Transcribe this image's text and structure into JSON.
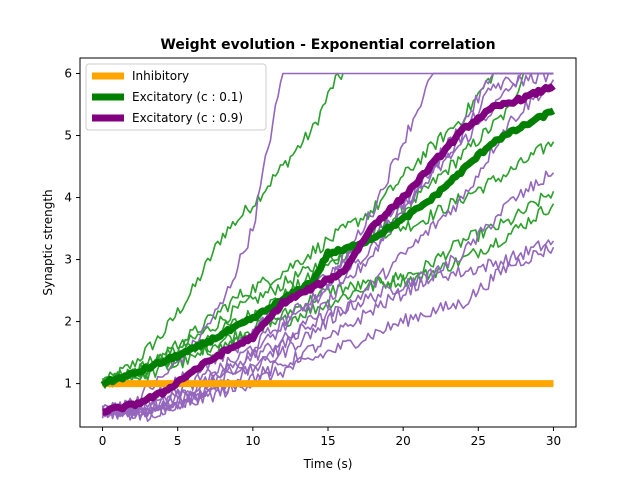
{
  "chart_data": {
    "type": "line",
    "title": "Weight evolution - Exponential correlation",
    "xlabel": "Time (s)",
    "ylabel": "Synaptic strength",
    "xlim": [
      -1.5,
      31.5
    ],
    "ylim": [
      0.3,
      6.25
    ],
    "xticks": [
      0,
      5,
      10,
      15,
      20,
      25,
      30
    ],
    "yticks": [
      1,
      2,
      3,
      4,
      5,
      6
    ],
    "grid": false,
    "legend_position": "top-left",
    "legend": [
      {
        "label": "Inhibitory",
        "color": "#ffa500"
      },
      {
        "label": "Excitatory (c : 0.1)",
        "color": "#008000"
      },
      {
        "label": "Excitatory (c : 0.9)",
        "color": "#800080"
      }
    ],
    "series": [
      {
        "name": "Inhibitory",
        "role": "mean",
        "color": "#ffa500",
        "x": [
          0,
          30
        ],
        "y": [
          1.0,
          1.0
        ]
      },
      {
        "name": "Excitatory (c : 0.1)",
        "role": "mean",
        "color": "#008000",
        "x": [
          0,
          2,
          4,
          6,
          8,
          10,
          12,
          14,
          15,
          16,
          18,
          20,
          22,
          24,
          26,
          28,
          30
        ],
        "y": [
          1.0,
          1.15,
          1.35,
          1.55,
          1.8,
          2.05,
          2.35,
          2.65,
          3.1,
          3.15,
          3.35,
          3.65,
          4.0,
          4.45,
          4.9,
          5.15,
          5.4
        ]
      },
      {
        "name": "Excitatory (c : 0.9)",
        "role": "mean",
        "color": "#800080",
        "x": [
          0,
          2,
          4,
          6,
          8,
          10,
          12,
          14,
          16,
          18,
          20,
          22,
          24,
          26,
          28,
          30
        ],
        "y": [
          0.55,
          0.65,
          0.85,
          1.2,
          1.5,
          1.75,
          2.3,
          2.55,
          2.8,
          3.55,
          4.0,
          4.55,
          5.1,
          5.45,
          5.6,
          5.8
        ]
      },
      {
        "role": "trace",
        "color": "#2ca02c",
        "x": [
          0,
          2,
          4,
          6,
          8,
          10,
          12,
          14,
          15.5,
          16
        ],
        "y": [
          1.0,
          1.3,
          1.8,
          2.5,
          3.4,
          3.9,
          4.5,
          5.1,
          5.9,
          6.0
        ]
      },
      {
        "role": "trace",
        "color": "#2ca02c",
        "x": [
          0,
          3,
          6,
          9,
          12,
          15,
          18,
          21,
          24,
          27,
          28,
          30
        ],
        "y": [
          1.0,
          1.2,
          1.6,
          2.0,
          2.4,
          2.9,
          3.4,
          4.0,
          4.7,
          5.4,
          6.0,
          6.0
        ]
      },
      {
        "role": "trace",
        "color": "#2ca02c",
        "x": [
          0,
          3,
          6,
          9,
          12,
          15,
          18,
          21,
          24,
          27,
          30
        ],
        "y": [
          1.0,
          1.3,
          1.7,
          2.2,
          2.6,
          3.0,
          3.4,
          3.6,
          4.0,
          4.4,
          4.9
        ]
      },
      {
        "role": "trace",
        "color": "#2ca02c",
        "x": [
          0,
          3,
          6,
          9,
          12,
          15,
          18,
          21,
          24,
          27,
          30
        ],
        "y": [
          1.0,
          1.2,
          1.5,
          1.8,
          2.1,
          2.5,
          2.6,
          2.8,
          3.3,
          3.6,
          4.1
        ]
      },
      {
        "role": "trace",
        "color": "#2ca02c",
        "x": [
          0,
          3,
          6,
          9,
          12,
          15,
          18,
          21,
          24,
          27,
          30
        ],
        "y": [
          1.0,
          1.15,
          1.4,
          1.7,
          2.0,
          2.3,
          2.6,
          2.7,
          3.0,
          3.4,
          3.9
        ]
      },
      {
        "role": "trace",
        "color": "#2ca02c",
        "x": [
          0,
          3,
          6,
          9,
          12,
          15,
          18,
          21,
          24,
          26,
          30
        ],
        "y": [
          1.0,
          1.3,
          1.8,
          2.4,
          2.8,
          3.3,
          3.8,
          4.6,
          5.3,
          6.0,
          6.0
        ]
      },
      {
        "role": "trace",
        "color": "#9467bd",
        "x": [
          0,
          2,
          4,
          6,
          8,
          9,
          10,
          11,
          12,
          30
        ],
        "y": [
          0.55,
          0.7,
          1.1,
          1.6,
          2.3,
          2.9,
          3.5,
          4.8,
          6.0,
          6.0
        ]
      },
      {
        "role": "trace",
        "color": "#9467bd",
        "x": [
          0,
          3,
          6,
          9,
          12,
          15,
          18,
          21,
          24,
          27,
          30
        ],
        "y": [
          0.55,
          0.6,
          0.9,
          1.3,
          1.7,
          2.1,
          2.4,
          2.7,
          2.8,
          3.0,
          3.3
        ]
      },
      {
        "role": "trace",
        "color": "#9467bd",
        "x": [
          0,
          3,
          6,
          9,
          12,
          15,
          18,
          21,
          24,
          26,
          30
        ],
        "y": [
          0.55,
          0.5,
          0.8,
          1.2,
          1.6,
          2.3,
          3.1,
          4.2,
          5.2,
          6.0,
          6.0
        ]
      },
      {
        "role": "trace",
        "color": "#9467bd",
        "x": [
          0,
          3,
          6,
          9,
          12,
          15,
          18,
          21,
          24,
          27,
          30
        ],
        "y": [
          0.55,
          0.5,
          0.7,
          0.95,
          1.2,
          1.5,
          1.8,
          2.1,
          2.3,
          2.9,
          3.2
        ]
      },
      {
        "role": "trace",
        "color": "#9467bd",
        "x": [
          0,
          3,
          6,
          9,
          12,
          15,
          18,
          20,
          22,
          30
        ],
        "y": [
          0.55,
          0.6,
          1.0,
          1.4,
          2.0,
          2.6,
          3.8,
          4.9,
          6.0,
          6.0
        ]
      },
      {
        "role": "trace",
        "color": "#9467bd",
        "x": [
          0,
          3,
          6,
          9,
          12,
          15,
          18,
          21,
          24,
          28,
          30
        ],
        "y": [
          0.55,
          0.7,
          1.2,
          1.6,
          2.3,
          2.8,
          3.4,
          4.1,
          4.9,
          6.0,
          6.0
        ]
      },
      {
        "role": "trace",
        "color": "#9467bd",
        "x": [
          0,
          3,
          6,
          9,
          12,
          15,
          18,
          21,
          24,
          27,
          30
        ],
        "y": [
          0.55,
          0.5,
          0.8,
          1.1,
          1.5,
          2.0,
          2.6,
          3.3,
          4.0,
          5.2,
          5.9
        ]
      },
      {
        "role": "trace",
        "color": "#9467bd",
        "x": [
          0,
          3,
          6,
          9,
          12,
          15,
          18,
          21,
          24,
          26,
          30
        ],
        "y": [
          0.55,
          0.6,
          0.9,
          1.3,
          1.9,
          2.5,
          3.2,
          4.2,
          5.0,
          5.8,
          6.0
        ]
      },
      {
        "role": "trace",
        "color": "#9467bd",
        "x": [
          0,
          3,
          6,
          9,
          12,
          15,
          18,
          21,
          24,
          27,
          30
        ],
        "y": [
          0.55,
          0.55,
          0.75,
          1.0,
          1.3,
          1.7,
          2.2,
          2.6,
          3.1,
          3.9,
          4.4
        ]
      }
    ]
  }
}
